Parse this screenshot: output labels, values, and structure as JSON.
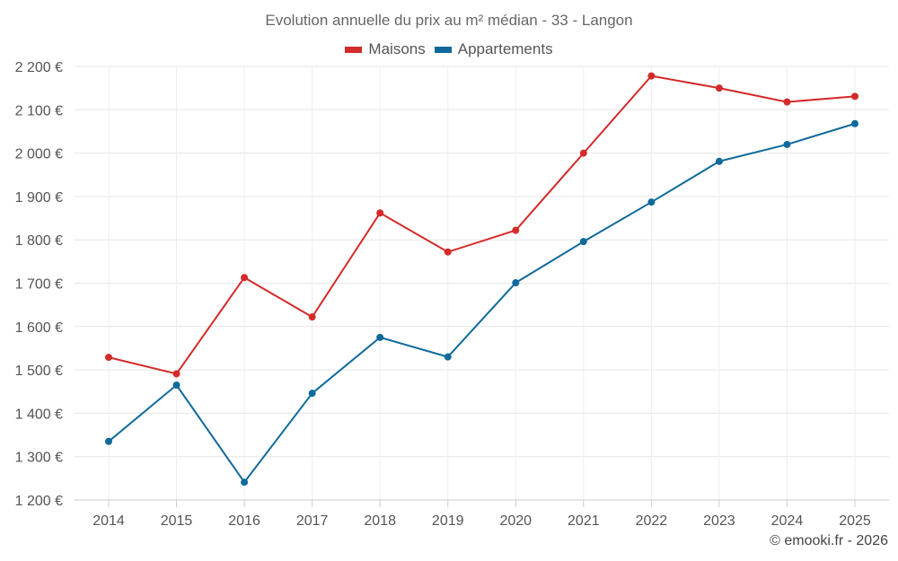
{
  "chart_data": {
    "type": "line",
    "title": "Evolution annuelle du prix au m² médian - 33 - Langon",
    "categories": [
      "2014",
      "2015",
      "2016",
      "2017",
      "2018",
      "2019",
      "2020",
      "2021",
      "2022",
      "2023",
      "2024",
      "2025"
    ],
    "series": [
      {
        "name": "Maisons",
        "color": "#d42a2a",
        "values": [
          1529,
          1491,
          1713,
          1622,
          1862,
          1772,
          1822,
          2000,
          2178,
          2150,
          2118,
          2131
        ]
      },
      {
        "name": "Appartements",
        "color": "#0f6a9b",
        "values": [
          1335,
          1465,
          1241,
          1446,
          1575,
          1530,
          1701,
          1796,
          1887,
          1981,
          2020,
          2068
        ]
      }
    ],
    "ylim": [
      1200,
      2200
    ],
    "y_ticks": [
      1200,
      1300,
      1400,
      1500,
      1600,
      1700,
      1800,
      1900,
      2000,
      2100,
      2200
    ],
    "y_tick_labels": [
      "1 200 €",
      "1 300 €",
      "1 400 €",
      "1 500 €",
      "1 600 €",
      "1 700 €",
      "1 800 €",
      "1 900 €",
      "2 000 €",
      "2 100 €",
      "2 200 €"
    ],
    "xlabel": "",
    "ylabel": "",
    "grid": true,
    "legend_position": "top-center"
  },
  "credit": "© emooki.fr - 2026"
}
